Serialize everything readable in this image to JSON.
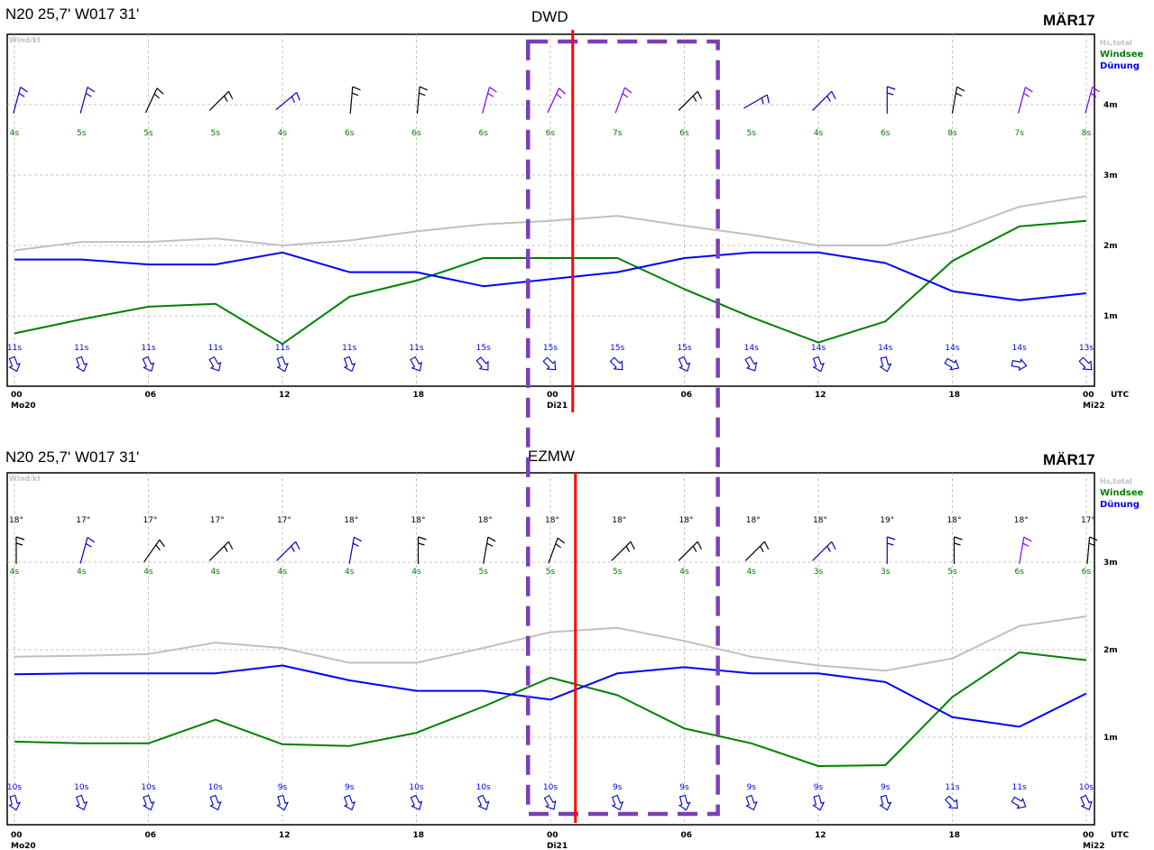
{
  "chart_data": [
    {
      "type": "line",
      "title": "DWD",
      "position_text": "N20 25,7' W017 31'",
      "month_label": "MÄR17",
      "ylabel": "Wind/kt",
      "ytick_labels": [
        "1m",
        "2m",
        "3m",
        "4m"
      ],
      "ylim": [
        0,
        5
      ],
      "y_ticks": [
        1,
        2,
        3,
        4
      ],
      "x_unit_label": "UTC",
      "x_hours": [
        0,
        3,
        6,
        9,
        12,
        15,
        18,
        21,
        24,
        27,
        30,
        33,
        36,
        39,
        42,
        45,
        48
      ],
      "x_ticks": [
        {
          "h": 0,
          "label": "00",
          "day": "Mo20"
        },
        {
          "h": 6,
          "label": "06",
          "day": ""
        },
        {
          "h": 12,
          "label": "12",
          "day": ""
        },
        {
          "h": 18,
          "label": "18",
          "day": ""
        },
        {
          "h": 24,
          "label": "00",
          "day": "Di21"
        },
        {
          "h": 30,
          "label": "06",
          "day": ""
        },
        {
          "h": 36,
          "label": "12",
          "day": ""
        },
        {
          "h": 42,
          "label": "18",
          "day": ""
        },
        {
          "h": 48,
          "label": "00",
          "day": "Mi22"
        }
      ],
      "legend": [
        {
          "name": "Hs,total",
          "color": "#c0c0c0"
        },
        {
          "name": "Windsee",
          "color": "#008000"
        },
        {
          "name": "Dünung",
          "color": "#0000ff"
        }
      ],
      "series": [
        {
          "name": "Hs,total",
          "color": "#c0c0c0",
          "values": [
            1.93,
            2.05,
            2.05,
            2.1,
            2.0,
            2.07,
            2.2,
            2.3,
            2.35,
            2.42,
            2.28,
            2.15,
            2.0,
            2.0,
            2.2,
            2.55,
            2.7
          ]
        },
        {
          "name": "Windsee",
          "color": "#008000",
          "values": [
            0.75,
            0.95,
            1.13,
            1.17,
            0.6,
            1.27,
            1.5,
            1.82,
            1.82,
            1.82,
            1.38,
            0.98,
            0.62,
            0.92,
            1.78,
            2.27,
            2.35
          ]
        },
        {
          "name": "Dünung",
          "color": "#0000ff",
          "values": [
            1.8,
            1.8,
            1.73,
            1.73,
            1.9,
            1.62,
            1.62,
            1.42,
            1.52,
            1.62,
            1.82,
            1.9,
            1.9,
            1.75,
            1.35,
            1.22,
            1.32
          ]
        }
      ],
      "has_temperatures": false,
      "temperatures": [],
      "wind_period_labels": [
        "4s",
        "5s",
        "5s",
        "5s",
        "4s",
        "6s",
        "6s",
        "6s",
        "6s",
        "7s",
        "6s",
        "5s",
        "4s",
        "6s",
        "8s",
        "7s",
        "8s"
      ],
      "swell_period_labels": [
        "11s",
        "11s",
        "11s",
        "11s",
        "11s",
        "11s",
        "11s",
        "15s",
        "15s",
        "15s",
        "15s",
        "14s",
        "14s",
        "14s",
        "14s",
        "14s",
        "13s"
      ],
      "wind_barbs": [
        {
          "dir": 15,
          "color": "#0000c0"
        },
        {
          "dir": 15,
          "color": "#0000c0"
        },
        {
          "dir": 25,
          "color": "#000000"
        },
        {
          "dir": 45,
          "color": "#000000"
        },
        {
          "dir": 50,
          "color": "#0000c0"
        },
        {
          "dir": 5,
          "color": "#000000"
        },
        {
          "dir": 5,
          "color": "#000000"
        },
        {
          "dir": 15,
          "color": "#8000ff"
        },
        {
          "dir": 25,
          "color": "#8000ff"
        },
        {
          "dir": 20,
          "color": "#8000ff"
        },
        {
          "dir": 45,
          "color": "#000000"
        },
        {
          "dir": 60,
          "color": "#0000c0"
        },
        {
          "dir": 45,
          "color": "#0000c0"
        },
        {
          "dir": 0,
          "color": "#0000c0"
        },
        {
          "dir": 10,
          "color": "#000000"
        },
        {
          "dir": 15,
          "color": "#8000ff"
        },
        {
          "dir": 15,
          "color": "#8000ff"
        }
      ],
      "swell_dirs": [
        -20,
        -20,
        -25,
        -30,
        -20,
        -20,
        -30,
        -40,
        -45,
        -45,
        -25,
        -30,
        -20,
        -15,
        -60,
        -80,
        -45
      ]
    },
    {
      "type": "line",
      "title": "EZMW",
      "position_text": "N20 25,7' W017 31'",
      "month_label": "MÄR17",
      "ylabel": "Wind/kt",
      "ytick_labels": [
        "1m",
        "2m",
        "3m"
      ],
      "ylim": [
        0,
        4
      ],
      "y_ticks": [
        1,
        2,
        3
      ],
      "x_unit_label": "UTC",
      "x_hours": [
        0,
        3,
        6,
        9,
        12,
        15,
        18,
        21,
        24,
        27,
        30,
        33,
        36,
        39,
        42,
        45,
        48
      ],
      "x_ticks": [
        {
          "h": 0,
          "label": "00",
          "day": "Mo20"
        },
        {
          "h": 6,
          "label": "06",
          "day": ""
        },
        {
          "h": 12,
          "label": "12",
          "day": ""
        },
        {
          "h": 18,
          "label": "18",
          "day": ""
        },
        {
          "h": 24,
          "label": "00",
          "day": "Di21"
        },
        {
          "h": 30,
          "label": "06",
          "day": ""
        },
        {
          "h": 36,
          "label": "12",
          "day": ""
        },
        {
          "h": 42,
          "label": "18",
          "day": ""
        },
        {
          "h": 48,
          "label": "00",
          "day": "Mi22"
        }
      ],
      "legend": [
        {
          "name": "Hs,total",
          "color": "#c0c0c0"
        },
        {
          "name": "Windsee",
          "color": "#008000"
        },
        {
          "name": "Dünung",
          "color": "#0000ff"
        }
      ],
      "series": [
        {
          "name": "Hs,total",
          "color": "#c0c0c0",
          "values": [
            1.92,
            1.93,
            1.95,
            2.08,
            2.02,
            1.85,
            1.85,
            2.02,
            2.2,
            2.25,
            2.1,
            1.92,
            1.82,
            1.76,
            1.9,
            2.27,
            2.38
          ]
        },
        {
          "name": "Windsee",
          "color": "#008000",
          "values": [
            0.95,
            0.93,
            0.93,
            1.2,
            0.92,
            0.9,
            1.05,
            1.35,
            1.68,
            1.48,
            1.1,
            0.93,
            0.67,
            0.68,
            1.46,
            1.97,
            1.88
          ]
        },
        {
          "name": "Dünung",
          "color": "#0000ff",
          "values": [
            1.72,
            1.73,
            1.73,
            1.73,
            1.82,
            1.65,
            1.53,
            1.53,
            1.43,
            1.73,
            1.8,
            1.73,
            1.73,
            1.63,
            1.23,
            1.12,
            1.5
          ]
        }
      ],
      "has_temperatures": true,
      "temperatures": [
        "18°",
        "17°",
        "17°",
        "17°",
        "17°",
        "18°",
        "18°",
        "18°",
        "18°",
        "18°",
        "18°",
        "18°",
        "18°",
        "19°",
        "18°",
        "18°",
        "17°"
      ],
      "wind_period_labels": [
        "4s",
        "4s",
        "4s",
        "4s",
        "4s",
        "4s",
        "4s",
        "5s",
        "5s",
        "5s",
        "4s",
        "4s",
        "3s",
        "3s",
        "5s",
        "6s",
        "6s"
      ],
      "swell_period_labels": [
        "10s",
        "10s",
        "10s",
        "10s",
        "9s",
        "9s",
        "10s",
        "10s",
        "10s",
        "9s",
        "9s",
        "9s",
        "9s",
        "9s",
        "11s",
        "11s",
        "10s"
      ],
      "wind_barbs": [
        {
          "dir": 0,
          "color": "#000000"
        },
        {
          "dir": 15,
          "color": "#0000c0"
        },
        {
          "dir": 35,
          "color": "#000000"
        },
        {
          "dir": 45,
          "color": "#000000"
        },
        {
          "dir": 45,
          "color": "#0000c0"
        },
        {
          "dir": 10,
          "color": "#0000c0"
        },
        {
          "dir": 0,
          "color": "#000000"
        },
        {
          "dir": 10,
          "color": "#000000"
        },
        {
          "dir": 20,
          "color": "#000000"
        },
        {
          "dir": 45,
          "color": "#000000"
        },
        {
          "dir": 45,
          "color": "#000000"
        },
        {
          "dir": 45,
          "color": "#000000"
        },
        {
          "dir": 45,
          "color": "#0000c0"
        },
        {
          "dir": 0,
          "color": "#0000c0"
        },
        {
          "dir": 0,
          "color": "#000000"
        },
        {
          "dir": 10,
          "color": "#8000ff"
        },
        {
          "dir": 5,
          "color": "#000000"
        }
      ],
      "swell_dirs": [
        -15,
        -20,
        -20,
        -20,
        -15,
        -20,
        -25,
        -25,
        -30,
        -20,
        -15,
        -20,
        -15,
        -15,
        -45,
        -60,
        -25
      ]
    }
  ],
  "overlay": {
    "current_time_color": "#ff0000",
    "current_time_hour": 25,
    "highlight_color": "#7b3fb5",
    "highlight_from_hour": 23,
    "highlight_to_hour": 31.5
  }
}
